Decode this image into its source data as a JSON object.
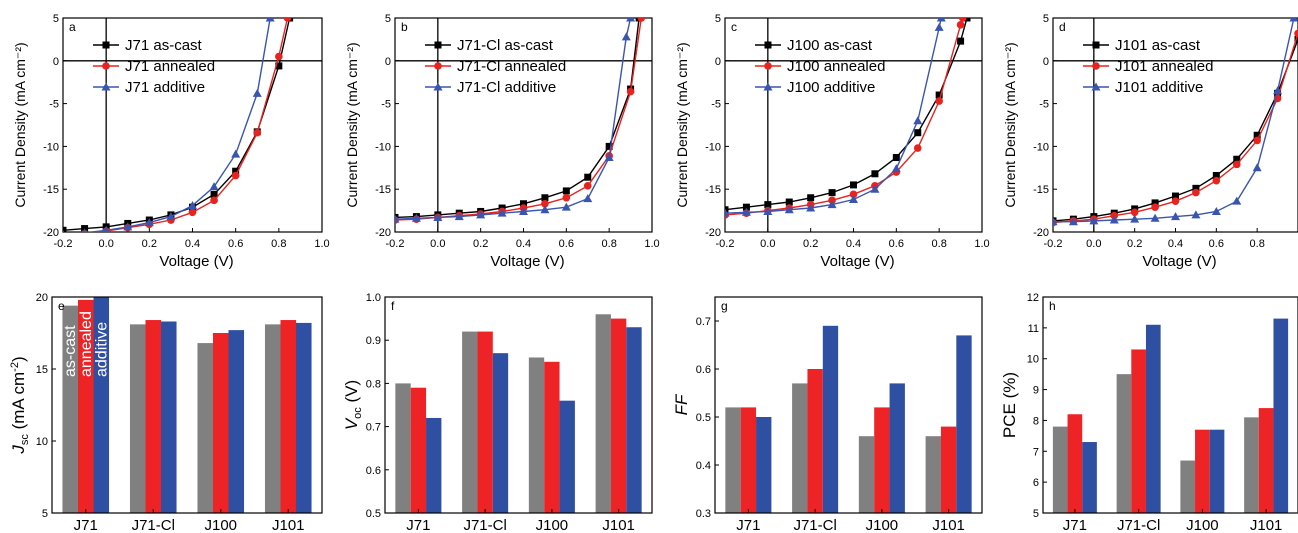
{
  "colors": {
    "as_cast": "#000000",
    "annealed": "#e8231f",
    "additive": "#3a55b0",
    "bar_as_cast": "#808080",
    "bar_annealed": "#ee2326",
    "bar_additive": "#2f4fa3"
  },
  "chart_data": [
    {
      "type": "line",
      "panel_label": "a",
      "xlabel": "Voltage (V)",
      "ylabel": "Current Density (mA cm⁻²)",
      "xlim": [
        -0.2,
        1.0
      ],
      "ylim": [
        -20,
        5
      ],
      "xticks": [
        -0.2,
        0.0,
        0.2,
        0.4,
        0.6,
        0.8,
        1.0
      ],
      "xtick_labels": [
        "-0.2",
        "0.0",
        "0.2",
        "0.4",
        "0.6",
        "0.8",
        "1.0"
      ],
      "yticks": [
        -20,
        -15,
        -10,
        -5,
        0,
        5
      ],
      "ytick_labels": [
        "-20",
        "-15",
        "-10",
        "-5",
        "0",
        "5"
      ],
      "legend_position": "top-left",
      "series": [
        {
          "name": "J71 as-cast",
          "marker": "square",
          "color_key": "as_cast",
          "x": [
            -0.2,
            -0.1,
            0.0,
            0.1,
            0.2,
            0.3,
            0.4,
            0.5,
            0.6,
            0.7,
            0.8,
            0.85
          ],
          "y": [
            -19.8,
            -19.6,
            -19.4,
            -19.0,
            -18.6,
            -18.0,
            -17.1,
            -15.6,
            -12.9,
            -8.3,
            -0.6,
            5.0
          ]
        },
        {
          "name": "J71 annealed",
          "marker": "circle",
          "color_key": "annealed",
          "x": [
            -0.2,
            -0.1,
            0.0,
            0.1,
            0.2,
            0.3,
            0.4,
            0.5,
            0.6,
            0.7,
            0.8,
            0.84
          ],
          "y": [
            -20.4,
            -20.2,
            -19.9,
            -19.5,
            -19.1,
            -18.6,
            -17.7,
            -16.3,
            -13.4,
            -8.4,
            0.5,
            5.0
          ]
        },
        {
          "name": "J71 additive",
          "marker": "triangle",
          "color_key": "additive",
          "x": [
            -0.2,
            -0.1,
            0.0,
            0.1,
            0.2,
            0.3,
            0.4,
            0.5,
            0.6,
            0.7,
            0.76
          ],
          "y": [
            -20.3,
            -20.1,
            -19.8,
            -19.4,
            -18.9,
            -18.2,
            -16.9,
            -14.7,
            -10.9,
            -3.8,
            5.0
          ]
        }
      ]
    },
    {
      "type": "line",
      "panel_label": "b",
      "xlabel": "Voltage (V)",
      "ylabel": "Current Density (mA cm⁻²)",
      "xlim": [
        -0.2,
        1.0
      ],
      "ylim": [
        -20,
        5
      ],
      "xticks": [
        -0.2,
        0.0,
        0.2,
        0.4,
        0.6,
        0.8,
        1.0
      ],
      "xtick_labels": [
        "-0.2",
        "0.0",
        "0.2",
        "0.4",
        "0.6",
        "0.8",
        "1.0"
      ],
      "yticks": [
        -20,
        -15,
        -10,
        -5,
        0,
        5
      ],
      "ytick_labels": [
        "-20",
        "-15",
        "-10",
        "-5",
        "0",
        "5"
      ],
      "legend_position": "top-left",
      "series": [
        {
          "name": "J71-Cl as-cast",
          "marker": "square",
          "color_key": "as_cast",
          "x": [
            -0.2,
            -0.1,
            0.0,
            0.1,
            0.2,
            0.3,
            0.4,
            0.5,
            0.6,
            0.7,
            0.8,
            0.9,
            0.94
          ],
          "y": [
            -18.3,
            -18.2,
            -18.0,
            -17.8,
            -17.6,
            -17.2,
            -16.7,
            -16.0,
            -15.2,
            -13.6,
            -10.0,
            -3.3,
            5.0
          ]
        },
        {
          "name": "J71-Cl annealed",
          "marker": "circle",
          "color_key": "annealed",
          "x": [
            -0.2,
            -0.1,
            0.0,
            0.1,
            0.2,
            0.3,
            0.4,
            0.5,
            0.6,
            0.7,
            0.8,
            0.9,
            0.95
          ],
          "y": [
            -18.6,
            -18.5,
            -18.3,
            -18.1,
            -17.9,
            -17.6,
            -17.2,
            -16.7,
            -16.0,
            -14.6,
            -11.1,
            -3.6,
            5.0
          ]
        },
        {
          "name": "J71-Cl additive",
          "marker": "triangle",
          "color_key": "additive",
          "x": [
            -0.2,
            -0.1,
            0.0,
            0.1,
            0.2,
            0.3,
            0.4,
            0.5,
            0.6,
            0.7,
            0.8,
            0.88,
            0.9
          ],
          "y": [
            -18.5,
            -18.4,
            -18.3,
            -18.2,
            -18.0,
            -17.8,
            -17.6,
            -17.4,
            -17.1,
            -16.1,
            -11.3,
            2.8,
            5.0
          ]
        }
      ]
    },
    {
      "type": "line",
      "panel_label": "c",
      "xlabel": "Voltage (V)",
      "ylabel": "Current Density (mA cm⁻²)",
      "xlim": [
        -0.2,
        1.0
      ],
      "ylim": [
        -20,
        5
      ],
      "xticks": [
        -0.2,
        0.0,
        0.2,
        0.4,
        0.6,
        0.8,
        1.0
      ],
      "xtick_labels": [
        "-0.2",
        "0.0",
        "0.2",
        "0.4",
        "0.6",
        "0.8",
        "1.0"
      ],
      "yticks": [
        -20,
        -15,
        -10,
        -5,
        0,
        5
      ],
      "ytick_labels": [
        "-20",
        "-15",
        "-10",
        "-5",
        "0",
        "5"
      ],
      "legend_position": "top-left",
      "series": [
        {
          "name": "J100 as-cast",
          "marker": "square",
          "color_key": "as_cast",
          "x": [
            -0.2,
            -0.1,
            0.0,
            0.1,
            0.2,
            0.3,
            0.4,
            0.5,
            0.6,
            0.7,
            0.8,
            0.9,
            0.93
          ],
          "y": [
            -17.4,
            -17.1,
            -16.8,
            -16.5,
            -16.0,
            -15.4,
            -14.5,
            -13.2,
            -11.3,
            -8.4,
            -4.0,
            2.3,
            5.0
          ]
        },
        {
          "name": "J100 annealed",
          "marker": "circle",
          "color_key": "annealed",
          "x": [
            -0.2,
            -0.1,
            0.0,
            0.1,
            0.2,
            0.3,
            0.4,
            0.5,
            0.6,
            0.7,
            0.8,
            0.9,
            0.91
          ],
          "y": [
            -18.0,
            -17.8,
            -17.5,
            -17.2,
            -16.8,
            -16.3,
            -15.6,
            -14.6,
            -13.0,
            -10.2,
            -4.7,
            4.2,
            5.0
          ]
        },
        {
          "name": "J100 additive",
          "marker": "triangle",
          "color_key": "additive",
          "x": [
            -0.2,
            -0.1,
            0.0,
            0.1,
            0.2,
            0.3,
            0.4,
            0.5,
            0.6,
            0.7,
            0.8,
            0.81
          ],
          "y": [
            -17.8,
            -17.7,
            -17.6,
            -17.4,
            -17.2,
            -16.8,
            -16.2,
            -15.0,
            -12.6,
            -7.0,
            3.9,
            5.0
          ]
        }
      ]
    },
    {
      "type": "line",
      "panel_label": "d",
      "xlabel": "Voltage (V)",
      "ylabel": "Current Density (mA cm⁻²)",
      "xlim": [
        -0.2,
        1.0
      ],
      "ylim": [
        -20,
        5
      ],
      "xticks": [
        -0.2,
        0.0,
        0.2,
        0.4,
        0.6,
        0.8,
        1.0
      ],
      "xtick_labels": [
        "-0.2",
        "0.0",
        "0.2",
        "0.4",
        "0.6",
        "0.8",
        "1.0"
      ],
      "yticks": [
        -20,
        -15,
        -10,
        -5,
        0,
        5
      ],
      "ytick_labels": [
        "-20",
        "-15",
        "-10",
        "-5",
        "0",
        "5"
      ],
      "legend_position": "top-left",
      "series": [
        {
          "name": "J101 as-cast",
          "marker": "square",
          "color_key": "as_cast",
          "x": [
            -0.2,
            -0.1,
            0.0,
            0.1,
            0.2,
            0.3,
            0.4,
            0.5,
            0.6,
            0.7,
            0.8,
            0.9,
            1.0
          ],
          "y": [
            -18.7,
            -18.5,
            -18.2,
            -17.8,
            -17.3,
            -16.6,
            -15.8,
            -14.9,
            -13.4,
            -11.5,
            -8.7,
            -3.8,
            2.5
          ]
        },
        {
          "name": "J101 annealed",
          "marker": "circle",
          "color_key": "annealed",
          "x": [
            -0.2,
            -0.1,
            0.0,
            0.1,
            0.2,
            0.3,
            0.4,
            0.5,
            0.6,
            0.7,
            0.8,
            0.9,
            1.0
          ],
          "y": [
            -18.9,
            -18.7,
            -18.5,
            -18.1,
            -17.7,
            -17.1,
            -16.4,
            -15.4,
            -14.0,
            -12.1,
            -9.3,
            -4.4,
            3.2
          ]
        },
        {
          "name": "J101 additive",
          "marker": "triangle",
          "color_key": "additive",
          "x": [
            -0.2,
            -0.1,
            0.0,
            0.1,
            0.2,
            0.3,
            0.4,
            0.5,
            0.6,
            0.7,
            0.8,
            0.9,
            0.98
          ],
          "y": [
            -18.8,
            -18.8,
            -18.7,
            -18.6,
            -18.5,
            -18.4,
            -18.2,
            -18.0,
            -17.6,
            -16.4,
            -12.5,
            -3.5,
            5.0
          ]
        }
      ]
    },
    {
      "type": "bar",
      "panel_label": "e",
      "ylabel": "J_sc (mA cm⁻²)",
      "ylabel_main": "J",
      "ylabel_sub": "sc",
      "ylabel_rest": " (mA cm",
      "ylabel_sup": "-2",
      "ylabel_end": ")",
      "ylabel_italic": true,
      "ylim": [
        5,
        20
      ],
      "yticks": [
        5,
        10,
        15,
        20
      ],
      "ytick_labels": [
        "5",
        "10",
        "15",
        "20"
      ],
      "categories": [
        "J71",
        "J71-Cl",
        "J100",
        "J101"
      ],
      "inside_labels": [
        "as-cast",
        "annealed",
        "additive"
      ],
      "series": [
        {
          "name": "as-cast",
          "color_key": "bar_as_cast",
          "values": [
            19.4,
            18.1,
            16.8,
            18.1
          ]
        },
        {
          "name": "annealed",
          "color_key": "bar_annealed",
          "values": [
            19.8,
            18.4,
            17.5,
            18.4
          ]
        },
        {
          "name": "additive",
          "color_key": "bar_additive",
          "values": [
            20.0,
            18.3,
            17.7,
            18.2
          ]
        }
      ]
    },
    {
      "type": "bar",
      "panel_label": "f",
      "ylabel": "V_oc (V)",
      "ylabel_main": "V",
      "ylabel_sub": "oc",
      "ylabel_rest": " (V)",
      "ylabel_sup": "",
      "ylabel_end": "",
      "ylabel_italic": true,
      "ylim": [
        0.5,
        1.0
      ],
      "yticks": [
        0.5,
        0.6,
        0.7,
        0.8,
        0.9,
        1.0
      ],
      "ytick_labels": [
        "0.5",
        "0.6",
        "0.7",
        "0.8",
        "0.9",
        "1.0"
      ],
      "categories": [
        "J71",
        "J71-Cl",
        "J100",
        "J101"
      ],
      "series": [
        {
          "name": "as-cast",
          "color_key": "bar_as_cast",
          "values": [
            0.8,
            0.92,
            0.86,
            0.96
          ]
        },
        {
          "name": "annealed",
          "color_key": "bar_annealed",
          "values": [
            0.79,
            0.92,
            0.85,
            0.95
          ]
        },
        {
          "name": "additive",
          "color_key": "bar_additive",
          "values": [
            0.72,
            0.87,
            0.76,
            0.93
          ]
        }
      ]
    },
    {
      "type": "bar",
      "panel_label": "g",
      "ylabel": "FF",
      "ylabel_main": "FF",
      "ylabel_sub": "",
      "ylabel_rest": "",
      "ylabel_sup": "",
      "ylabel_end": "",
      "ylabel_italic": true,
      "ylim": [
        0.3,
        0.75
      ],
      "yticks": [
        0.3,
        0.4,
        0.5,
        0.6,
        0.7
      ],
      "ytick_labels": [
        "0.3",
        "0.4",
        "0.5",
        "0.6",
        "0.7"
      ],
      "categories": [
        "J71",
        "J71-Cl",
        "J100",
        "J101"
      ],
      "series": [
        {
          "name": "as-cast",
          "color_key": "bar_as_cast",
          "values": [
            0.52,
            0.57,
            0.46,
            0.46
          ]
        },
        {
          "name": "annealed",
          "color_key": "bar_annealed",
          "values": [
            0.52,
            0.6,
            0.52,
            0.48
          ]
        },
        {
          "name": "additive",
          "color_key": "bar_additive",
          "values": [
            0.5,
            0.69,
            0.57,
            0.67
          ]
        }
      ]
    },
    {
      "type": "bar",
      "panel_label": "h",
      "ylabel": "PCE (%)",
      "ylabel_main": "PCE (%)",
      "ylabel_sub": "",
      "ylabel_rest": "",
      "ylabel_sup": "",
      "ylabel_end": "",
      "ylabel_italic": false,
      "ylim": [
        5,
        12
      ],
      "yticks": [
        5,
        6,
        7,
        8,
        9,
        10,
        11,
        12
      ],
      "ytick_labels": [
        "5",
        "6",
        "7",
        "8",
        "9",
        "10",
        "11",
        "12"
      ],
      "categories": [
        "J71",
        "J71-Cl",
        "J100",
        "J101"
      ],
      "series": [
        {
          "name": "as-cast",
          "color_key": "bar_as_cast",
          "values": [
            7.8,
            9.5,
            6.7,
            8.1
          ]
        },
        {
          "name": "annealed",
          "color_key": "bar_annealed",
          "values": [
            8.2,
            10.3,
            7.7,
            8.4
          ]
        },
        {
          "name": "additive",
          "color_key": "bar_additive",
          "values": [
            7.3,
            11.1,
            7.7,
            11.3
          ]
        }
      ]
    }
  ]
}
